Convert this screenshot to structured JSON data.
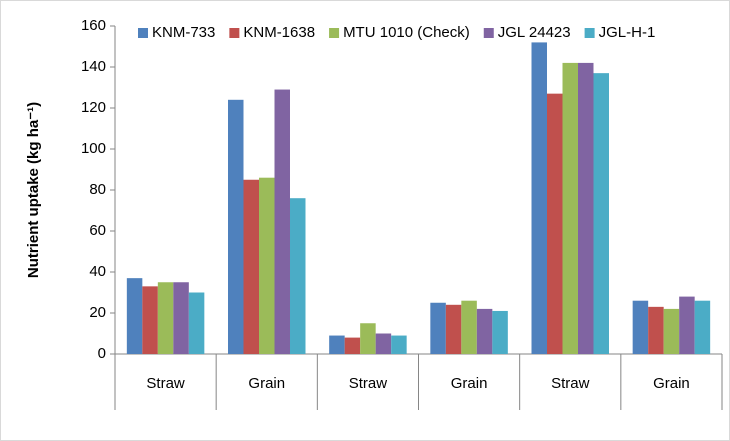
{
  "chart_data": {
    "type": "bar",
    "y_label": "Nutrient uptake (kg ha⁻¹)",
    "categories": [
      "Straw",
      "Grain",
      "Straw",
      "Grain",
      "Straw",
      "Grain"
    ],
    "series": [
      {
        "name": "KNM-733",
        "color": "#4f81bd",
        "values": [
          37,
          124,
          9,
          25,
          152,
          26
        ]
      },
      {
        "name": "KNM-1638",
        "color": "#c0504d",
        "values": [
          33,
          85,
          8,
          24,
          127,
          23
        ]
      },
      {
        "name": "MTU 1010 (Check)",
        "color": "#9bbb59",
        "values": [
          35,
          86,
          15,
          26,
          142,
          22
        ]
      },
      {
        "name": "JGL 24423",
        "color": "#8064a2",
        "values": [
          35,
          129,
          10,
          22,
          142,
          28
        ]
      },
      {
        "name": "JGL-H-1",
        "color": "#4bacc6",
        "values": [
          30,
          76,
          9,
          21,
          137,
          26
        ]
      }
    ],
    "ylim": [
      0,
      160
    ],
    "yticks": [
      0,
      20,
      40,
      60,
      80,
      100,
      120,
      140,
      160
    ],
    "grid": false,
    "legend": "top"
  }
}
